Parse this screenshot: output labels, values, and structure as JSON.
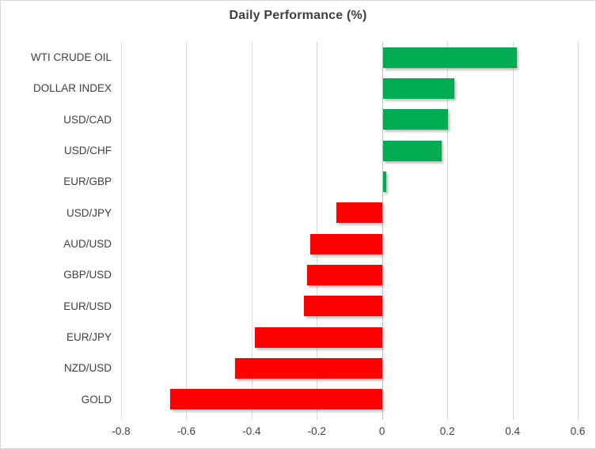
{
  "chart_data": {
    "type": "bar",
    "orientation": "horizontal",
    "title": "Daily Performance (%)",
    "categories": [
      "WTI CRUDE OIL",
      "DOLLAR INDEX",
      "USD/CAD",
      "USD/CHF",
      "EUR/GBP",
      "USD/JPY",
      "AUD/USD",
      "GBP/USD",
      "EUR/USD",
      "EUR/JPY",
      "NZD/USD",
      "GOLD"
    ],
    "values": [
      0.41,
      0.22,
      0.2,
      0.18,
      0.01,
      -0.14,
      -0.22,
      -0.23,
      -0.24,
      -0.39,
      -0.45,
      -0.65
    ],
    "xlim": [
      -0.8,
      0.6
    ],
    "x_tick_values": [
      -0.8,
      -0.6,
      -0.4,
      -0.2,
      0,
      0.2,
      0.4,
      0.6
    ],
    "x_tick_labels": [
      "-0.8",
      "-0.6",
      "-0.4",
      "-0.2",
      "0",
      "0.2",
      "0.4",
      "0.6"
    ],
    "grid": true,
    "legend": "none",
    "colors": {
      "positive_bar": "#00AB51",
      "negative_bar": "#FF0000",
      "gridline": "#D9D9D9",
      "zero_axis": "#BFBFBF",
      "text": "#404040",
      "border": "#D9D9D9",
      "background": "#FFFFFF"
    }
  }
}
